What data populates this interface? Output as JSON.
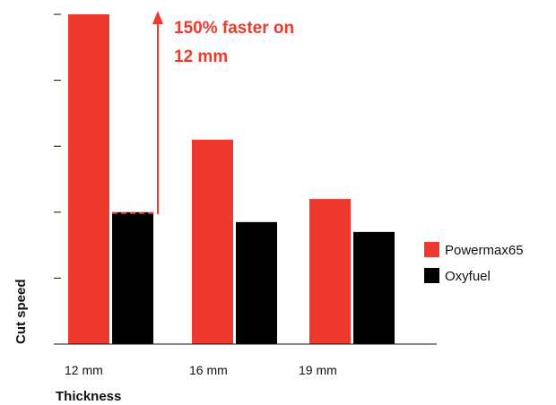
{
  "chart_data": {
    "type": "bar",
    "categories": [
      "12 mm",
      "16 mm",
      "19 mm"
    ],
    "series": [
      {
        "name": "Powermax65",
        "values": [
          5.0,
          3.1,
          2.2
        ],
        "color": "#ee3a2e"
      },
      {
        "name": "Oxyfuel",
        "values": [
          2.0,
          1.85,
          1.7
        ],
        "color": "#000000"
      }
    ],
    "xlabel": "Thickness",
    "ylabel": "Cut speed",
    "ylim": [
      0,
      5
    ],
    "yticks": [
      1,
      2,
      3,
      4,
      5
    ],
    "ytick_labels_shown": false,
    "grid": false,
    "legend_position": "right",
    "annotation": {
      "line1": "150% faster on",
      "line2": "12 mm",
      "color": "#ee3a2e",
      "from_category": "12 mm",
      "from_value": 2.0
    }
  }
}
